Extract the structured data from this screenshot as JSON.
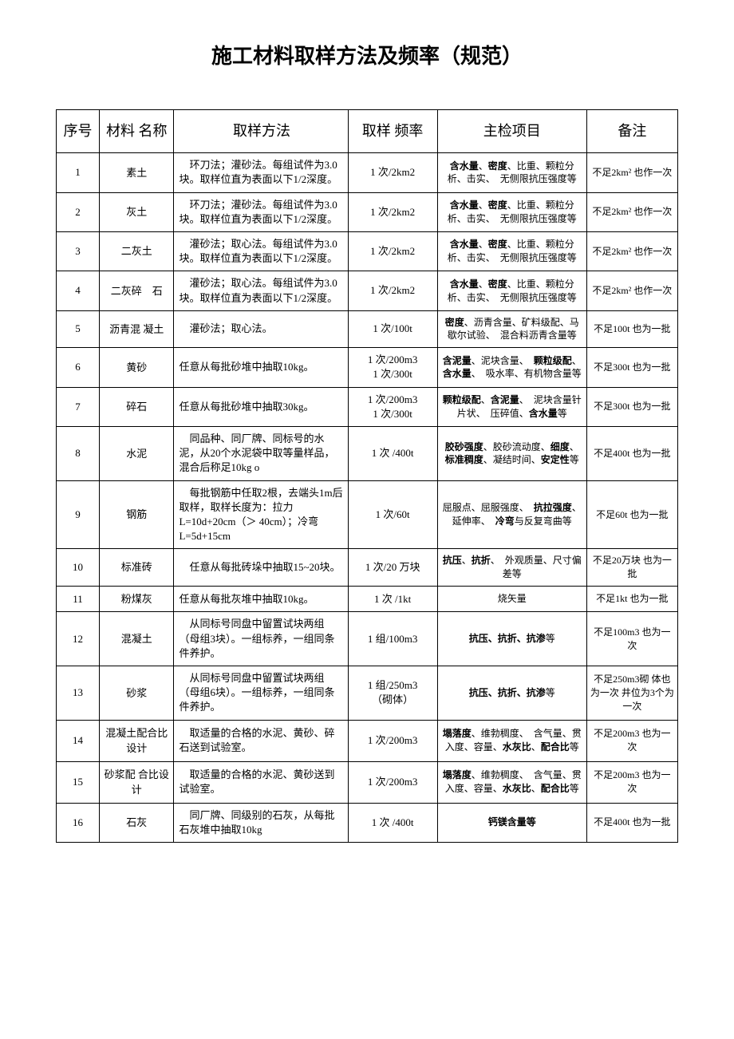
{
  "title": "施工材料取样方法及频率（规范）",
  "headers": {
    "index": "序号",
    "name": "材料 名称",
    "method": "取样方法",
    "freq": "取样 频率",
    "check": "主检项目",
    "note": "备注"
  },
  "rows": [
    {
      "index": "1",
      "name": "素土",
      "method": "　环刀法；灌砂法。每组试件为3.0块。取样位直为表面以下1/2深度。",
      "freq": "1 次/2km2",
      "check_html": "<span class='bold'>含水量</span>、<span class='bold'>密度</span>、比重、颗粒分析、击实、　无侧限抗压强度等",
      "note": "不足2km² 也作一次"
    },
    {
      "index": "2",
      "name": "灰土",
      "method": "　环刀法；灌砂法。每组试件为3.0块。取样位直为表面以下1/2深度。",
      "freq": "1 次/2km2",
      "check_html": "<span class='bold'>含水量</span>、<span class='bold'>密度</span>、比重、颗粒分析、击实、　无侧限抗压强度等",
      "note": "不足2km² 也作一次"
    },
    {
      "index": "3",
      "name": "二灰土",
      "method": "　灌砂法；取心法。每组试件为3.0块。取样位直为表面以下1/2深度。",
      "freq": "1 次/2km2",
      "check_html": "<span class='bold'>含水量</span>、<span class='bold'>密度</span>、比重、颗粒分析、击实、　无侧限抗压强度等",
      "note": "不足2km² 也作一次"
    },
    {
      "index": "4",
      "name": "二灰碎　石",
      "method": "　灌砂法；取心法。每组试件为3.0块。取样位直为表面以下1/2深度。",
      "freq": "1 次/2km2",
      "check_html": "<span class='bold'>含水量</span>、<span class='bold'>密度</span>、比重、颗粒分析、击实、　无侧限抗压强度等",
      "note": "不足2km² 也作一次"
    },
    {
      "index": "5",
      "name": "沥青混 凝土",
      "method": "　灌砂法；取心法。",
      "freq": "1 次/100t",
      "check_html": "<span class='bold'>密度</span>、沥青含量、矿料级配、马歇尔试验、　混合料沥青含量等",
      "note": "不足100t 也为一批"
    },
    {
      "index": "6",
      "name": "黄砂",
      "method": "任意从每批砂堆中抽取10kg。",
      "freq": "1 次/200m3\n1 次/300t",
      "check_html": "<span class='bold'>含泥量</span>、泥块含量、　<span class='bold'>颗粒级配</span>、<span class='bold'>含水量</span>、　吸水率、有机物含量等",
      "note": "不足300t 也为一批"
    },
    {
      "index": "7",
      "name": "碎石",
      "method": "任意从每批砂堆中抽取30kg。",
      "freq": "1 次/200m3\n1 次/300t",
      "check_html": "<span class='bold'>颗粒级配</span>、<span class='bold'>含泥量</span>、　泥块含量针片状、　压碎值、<span class='bold'>含水量</span>等",
      "note": "不足300t 也为一批"
    },
    {
      "index": "8",
      "name": "水泥",
      "method": "　同品种、同厂牌、同标号的水泥，从20个水泥袋中取等量样品，混合后称足10kg o",
      "freq": "1 次 /400t",
      "check_html": "<span class='bold'>胶砂强度</span>、胶砂流动度、<span class='bold'>细度</span>、<span class='bold'>标准稠度</span>、凝结时间、<span class='bold'>安定性</span>等",
      "note": "不足400t 也为一批"
    },
    {
      "index": "9",
      "name": "钢筋",
      "method": "　每批钢筋中任取2根，去端头1m后取样，取样长度为：拉力L=10d+20cm（＞ 40cm）；冷弯L=5d+15cm",
      "freq": "1 次/60t",
      "check_html": "屈服点、屈服强度、　<span class='bold'>抗拉强度</span>、延伸率、　<span class='bold'>冷弯</span>与反复弯曲等",
      "note": "不足60t 也为一批"
    },
    {
      "index": "10",
      "name": "标准砖",
      "method": "　任意从每批砖垛中抽取15~20块。",
      "freq": "1 次/20 万块",
      "check_html": "<span class='bold'>抗压</span>、<span class='bold'>抗折</span>、　外观质量、尺寸偏差等",
      "note": "不足20万块 也为一批"
    },
    {
      "index": "11",
      "name": "粉煤灰",
      "method": "任意从每批灰堆中抽取10kg。",
      "freq": "1 次 /1kt",
      "check_html": "烧矢量",
      "note": "不足1kt 也为一批"
    },
    {
      "index": "12",
      "name": "混凝土",
      "method": "　从同标号同盘中留置试块两组（母组3块）。一组标养，一组同条件养护。",
      "freq": "1 组/100m3",
      "check_html": "<span class='bold'>抗压、抗折、抗渗</span>等",
      "note": "不足100m3 也为一次"
    },
    {
      "index": "13",
      "name": "砂浆",
      "method": "　从同标号同盘中留置试块两组（母组6块）。一组标养，一组同条件养护。",
      "freq": "1 组/250m3\n（砌体）",
      "check_html": "<span class='bold'>抗压、抗折、抗渗</span>等",
      "note": "不足250m3砌 体也为一次 井位为3个为 一次"
    },
    {
      "index": "14",
      "name": "混凝土配合比设计",
      "method": "　取适量的合格的水泥、黄砂、碎石送到试验室。",
      "freq": "1 次/200m3",
      "check_html": "<span class='bold'>塌落度</span>、维勃稠度、　含气量、贯入度、容量、<span class='bold'>水灰比</span>、<span class='bold'>配合比</span>等",
      "note": "不足200m3 也为一次"
    },
    {
      "index": "15",
      "name": "砂浆配 合比设计",
      "method": "　取适量的合格的水泥、黄砂送到试验室。",
      "freq": "1 次/200m3",
      "check_html": "<span class='bold'>塌落度</span>、维勃稠度、　含气量、贯入度、容量、<span class='bold'>水灰比</span>、<span class='bold'>配合比</span>等",
      "note": "不足200m3 也为一次"
    },
    {
      "index": "16",
      "name": "石灰",
      "method": "　同厂牌、同级别的石灰，从每批石灰堆中抽取10kg",
      "freq": "1 次 /400t",
      "check_html": "<span class='bold'>钙镁含量等</span>",
      "note": "不足400t 也为一批"
    }
  ]
}
